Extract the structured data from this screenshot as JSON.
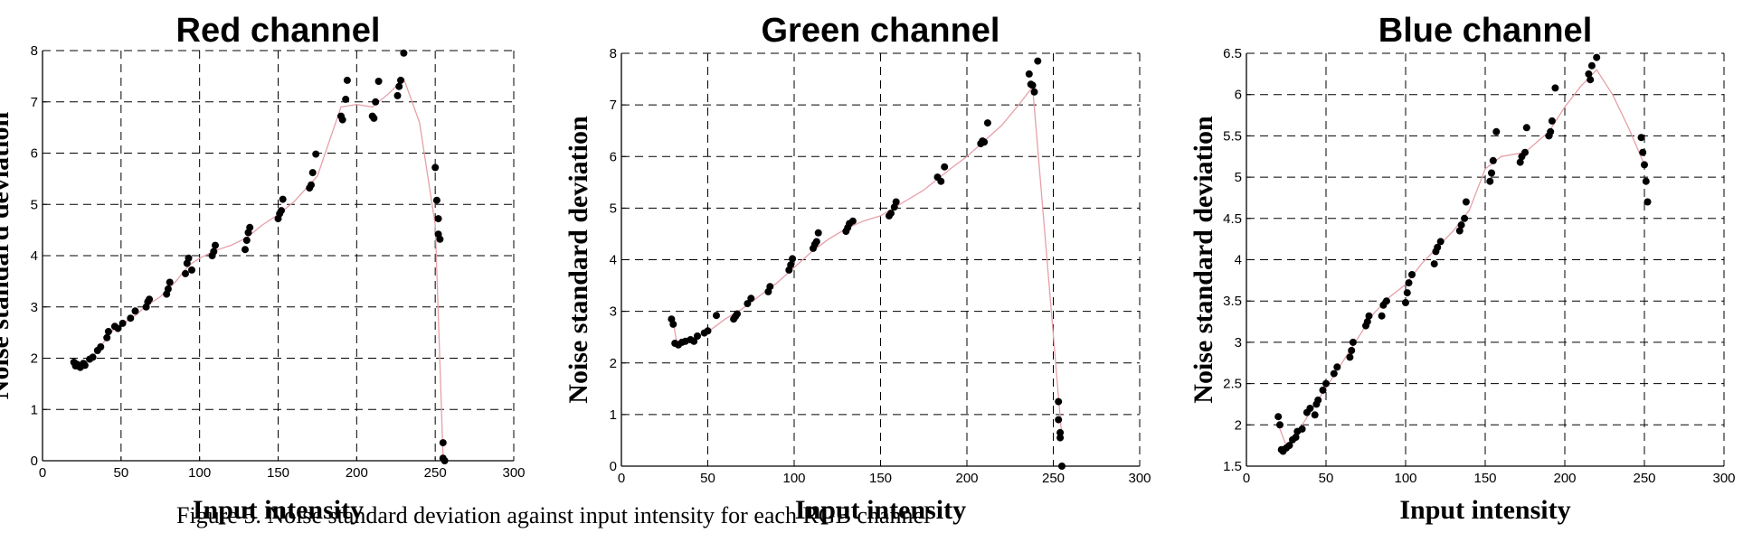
{
  "caption": "Figure 5. Noise standard deviation against input intensity for each RGB channel",
  "chart_data": [
    {
      "type": "scatter",
      "title": "Red channel",
      "xlabel": "Input intensity",
      "ylabel": "Noise standard deviation",
      "xlim": [
        0,
        300
      ],
      "ylim": [
        0,
        8
      ],
      "xticks": [
        0,
        50,
        100,
        150,
        200,
        250,
        300
      ],
      "yticks": [
        0,
        1,
        2,
        3,
        4,
        5,
        6,
        7,
        8
      ],
      "grid": true,
      "point_color": "#000000",
      "line_color": "#e6a0a8",
      "points": [
        [
          20,
          1.92
        ],
        [
          21,
          1.85
        ],
        [
          22,
          1.88
        ],
        [
          24,
          1.82
        ],
        [
          26,
          1.9
        ],
        [
          27,
          1.86
        ],
        [
          30,
          1.98
        ],
        [
          32,
          2.02
        ],
        [
          35,
          2.15
        ],
        [
          37,
          2.22
        ],
        [
          41,
          2.4
        ],
        [
          42,
          2.52
        ],
        [
          46,
          2.62
        ],
        [
          48,
          2.58
        ],
        [
          51,
          2.68
        ],
        [
          56,
          2.78
        ],
        [
          59,
          2.92
        ],
        [
          66,
          3.0
        ],
        [
          67,
          3.1
        ],
        [
          68,
          3.15
        ],
        [
          79,
          3.25
        ],
        [
          80,
          3.35
        ],
        [
          81,
          3.48
        ],
        [
          91,
          3.65
        ],
        [
          92,
          3.85
        ],
        [
          93,
          3.95
        ],
        [
          95,
          3.72
        ],
        [
          108,
          4.0
        ],
        [
          109,
          4.08
        ],
        [
          110,
          4.2
        ],
        [
          129,
          4.12
        ],
        [
          130,
          4.3
        ],
        [
          131,
          4.45
        ],
        [
          132,
          4.55
        ],
        [
          150,
          4.72
        ],
        [
          151,
          4.82
        ],
        [
          152,
          4.88
        ],
        [
          153,
          5.1
        ],
        [
          170,
          5.32
        ],
        [
          171,
          5.38
        ],
        [
          172,
          5.62
        ],
        [
          174,
          5.98
        ],
        [
          190,
          6.72
        ],
        [
          191,
          6.65
        ],
        [
          193,
          7.05
        ],
        [
          194,
          7.42
        ],
        [
          210,
          6.72
        ],
        [
          211,
          6.68
        ],
        [
          212,
          7.0
        ],
        [
          214,
          7.4
        ],
        [
          226,
          7.12
        ],
        [
          227,
          7.3
        ],
        [
          228,
          7.42
        ],
        [
          230,
          7.95
        ],
        [
          250,
          5.72
        ],
        [
          251,
          5.08
        ],
        [
          252,
          4.72
        ],
        [
          252,
          4.42
        ],
        [
          253,
          4.32
        ],
        [
          255,
          0.35
        ],
        [
          255,
          0.05
        ],
        [
          256,
          0.0
        ]
      ],
      "mean_line": {
        "x": [
          20,
          25,
          30,
          35,
          40,
          45,
          50,
          55,
          60,
          65,
          70,
          75,
          80,
          85,
          90,
          95,
          100,
          110,
          120,
          130,
          140,
          150,
          160,
          175,
          190,
          200,
          210,
          220,
          230,
          240,
          250,
          255
        ],
        "y": [
          1.9,
          1.9,
          1.95,
          2.15,
          2.35,
          2.55,
          2.65,
          2.75,
          2.85,
          3.0,
          3.1,
          3.2,
          3.35,
          3.5,
          3.7,
          3.85,
          3.95,
          4.1,
          4.2,
          4.35,
          4.6,
          4.8,
          5.05,
          5.55,
          6.9,
          6.95,
          6.9,
          7.15,
          7.45,
          6.6,
          4.6,
          0.1
        ]
      }
    },
    {
      "type": "scatter",
      "title": "Green channel",
      "xlabel": "Input intensity",
      "ylabel": "Noise standard deviation",
      "xlim": [
        0,
        300
      ],
      "ylim": [
        0,
        8
      ],
      "xticks": [
        0,
        50,
        100,
        150,
        200,
        250,
        300
      ],
      "yticks": [
        0,
        1,
        2,
        3,
        4,
        5,
        6,
        7,
        8
      ],
      "grid": true,
      "point_color": "#000000",
      "line_color": "#e6a0a8",
      "points": [
        [
          29,
          2.85
        ],
        [
          30,
          2.75
        ],
        [
          31,
          2.38
        ],
        [
          33,
          2.35
        ],
        [
          35,
          2.4
        ],
        [
          37,
          2.42
        ],
        [
          40,
          2.45
        ],
        [
          42,
          2.42
        ],
        [
          44,
          2.52
        ],
        [
          48,
          2.58
        ],
        [
          50,
          2.62
        ],
        [
          55,
          2.92
        ],
        [
          65,
          2.85
        ],
        [
          66,
          2.9
        ],
        [
          67,
          2.95
        ],
        [
          73,
          3.15
        ],
        [
          75,
          3.25
        ],
        [
          85,
          3.38
        ],
        [
          86,
          3.48
        ],
        [
          97,
          3.8
        ],
        [
          98,
          3.9
        ],
        [
          99,
          4.02
        ],
        [
          111,
          4.22
        ],
        [
          112,
          4.3
        ],
        [
          113,
          4.35
        ],
        [
          114,
          4.52
        ],
        [
          130,
          4.55
        ],
        [
          131,
          4.62
        ],
        [
          132,
          4.7
        ],
        [
          134,
          4.75
        ],
        [
          155,
          4.85
        ],
        [
          156,
          4.9
        ],
        [
          158,
          5.02
        ],
        [
          159,
          5.12
        ],
        [
          183,
          5.6
        ],
        [
          185,
          5.52
        ],
        [
          187,
          5.8
        ],
        [
          208,
          6.25
        ],
        [
          209,
          6.3
        ],
        [
          210,
          6.28
        ],
        [
          212,
          6.65
        ],
        [
          236,
          7.6
        ],
        [
          237,
          7.4
        ],
        [
          238,
          7.38
        ],
        [
          239,
          7.25
        ],
        [
          241,
          7.85
        ],
        [
          253,
          1.25
        ],
        [
          253,
          0.9
        ],
        [
          254,
          0.65
        ],
        [
          254,
          0.55
        ],
        [
          255,
          0.0
        ]
      ],
      "mean_line": {
        "x": [
          30,
          32,
          40,
          50,
          60,
          70,
          80,
          90,
          100,
          110,
          120,
          130,
          140,
          150,
          160,
          175,
          190,
          200,
          210,
          220,
          230,
          238,
          255
        ],
        "y": [
          2.8,
          2.4,
          2.45,
          2.6,
          2.85,
          3.05,
          3.3,
          3.55,
          3.85,
          4.15,
          4.4,
          4.6,
          4.75,
          4.85,
          5.05,
          5.35,
          5.75,
          6.0,
          6.3,
          6.6,
          7.0,
          7.35,
          0.55
        ]
      }
    },
    {
      "type": "scatter",
      "title": "Blue channel",
      "xlabel": "Input intensity",
      "ylabel": "Noise standard deviation",
      "xlim": [
        0,
        300
      ],
      "ylim": [
        1.5,
        6.5
      ],
      "xticks": [
        0,
        50,
        100,
        150,
        200,
        250,
        300
      ],
      "yticks": [
        1.5,
        2,
        2.5,
        3,
        3.5,
        4,
        4.5,
        5,
        5.5,
        6,
        6.5
      ],
      "ytick_labels": [
        "1.5",
        "2",
        "2.5",
        "3",
        "3.5",
        "4",
        "4.5",
        "5",
        "5.5",
        "6",
        "6.5"
      ],
      "grid": true,
      "point_color": "#000000",
      "line_color": "#e6a0a8",
      "points": [
        [
          20,
          2.1
        ],
        [
          21,
          2.0
        ],
        [
          22,
          1.7
        ],
        [
          23,
          1.68
        ],
        [
          25,
          1.72
        ],
        [
          27,
          1.75
        ],
        [
          29,
          1.82
        ],
        [
          31,
          1.85
        ],
        [
          32,
          1.92
        ],
        [
          35,
          1.95
        ],
        [
          38,
          2.15
        ],
        [
          40,
          2.2
        ],
        [
          43,
          2.12
        ],
        [
          44,
          2.25
        ],
        [
          45,
          2.3
        ],
        [
          48,
          2.42
        ],
        [
          50,
          2.5
        ],
        [
          55,
          2.62
        ],
        [
          57,
          2.7
        ],
        [
          65,
          2.82
        ],
        [
          66,
          2.9
        ],
        [
          67,
          3.0
        ],
        [
          75,
          3.2
        ],
        [
          76,
          3.25
        ],
        [
          77,
          3.32
        ],
        [
          85,
          3.32
        ],
        [
          86,
          3.45
        ],
        [
          88,
          3.5
        ],
        [
          100,
          3.48
        ],
        [
          101,
          3.6
        ],
        [
          102,
          3.72
        ],
        [
          104,
          3.82
        ],
        [
          118,
          3.95
        ],
        [
          119,
          4.1
        ],
        [
          120,
          4.15
        ],
        [
          122,
          4.22
        ],
        [
          134,
          4.35
        ],
        [
          135,
          4.42
        ],
        [
          137,
          4.5
        ],
        [
          138,
          4.7
        ],
        [
          153,
          4.95
        ],
        [
          154,
          5.05
        ],
        [
          155,
          5.2
        ],
        [
          157,
          5.55
        ],
        [
          172,
          5.18
        ],
        [
          173,
          5.25
        ],
        [
          175,
          5.3
        ],
        [
          176,
          5.6
        ],
        [
          190,
          5.5
        ],
        [
          191,
          5.55
        ],
        [
          192,
          5.68
        ],
        [
          194,
          6.08
        ],
        [
          215,
          6.25
        ],
        [
          216,
          6.18
        ],
        [
          217,
          6.35
        ],
        [
          220,
          6.45
        ],
        [
          248,
          5.48
        ],
        [
          249,
          5.3
        ],
        [
          250,
          5.15
        ],
        [
          251,
          4.95
        ],
        [
          252,
          4.7
        ]
      ],
      "mean_line": {
        "x": [
          20,
          25,
          30,
          35,
          40,
          45,
          50,
          60,
          70,
          80,
          90,
          100,
          110,
          120,
          130,
          140,
          150,
          160,
          175,
          190,
          200,
          210,
          220,
          230,
          240,
          250
        ],
        "y": [
          2.0,
          1.75,
          1.85,
          2.0,
          2.15,
          2.3,
          2.45,
          2.75,
          3.05,
          3.35,
          3.55,
          3.7,
          3.95,
          4.15,
          4.35,
          4.6,
          5.1,
          5.25,
          5.3,
          5.55,
          5.85,
          6.1,
          6.3,
          6.0,
          5.6,
          5.15
        ]
      }
    }
  ]
}
